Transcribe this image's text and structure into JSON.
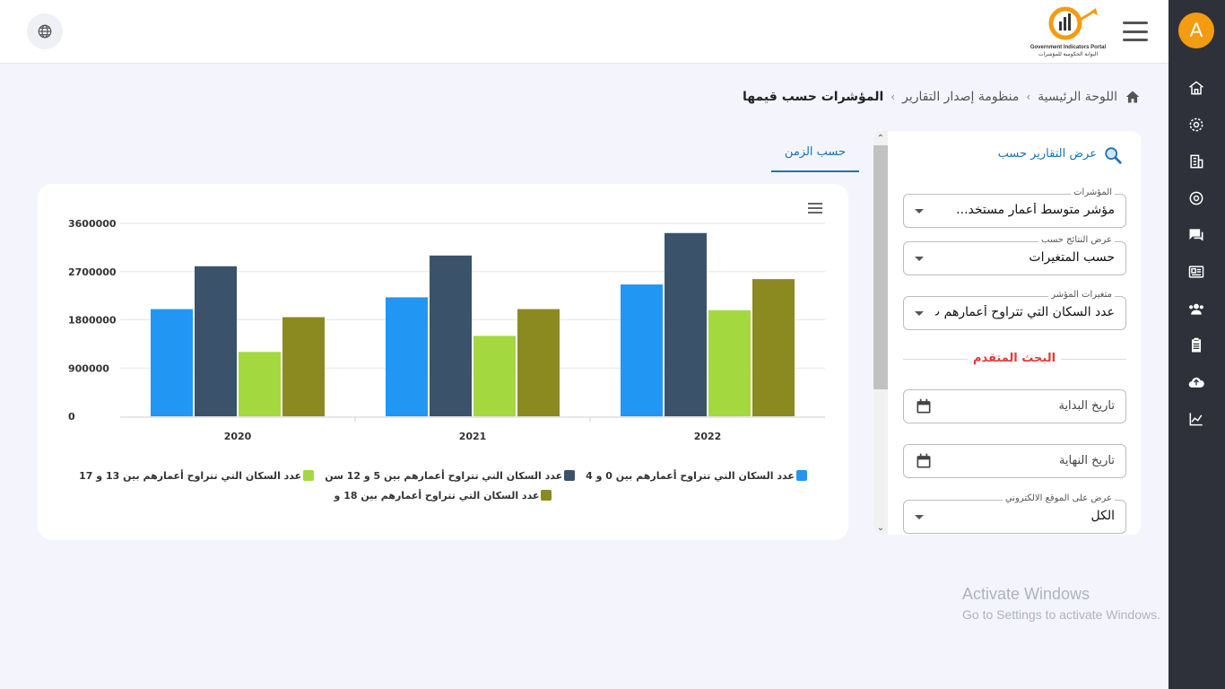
{
  "header": {
    "logo_en": "Government Indicators Portal",
    "logo_ar": "البوابة الحكومية للمؤشرات",
    "avatar_letter": "A"
  },
  "breadcrumb": {
    "home": "اللوحة الرئيسية",
    "section": "منظومة إصدار التقارير",
    "current": "المؤشرات حسب قيمها"
  },
  "sidebar": {
    "icons": [
      "home-icon",
      "settings-icon",
      "building-icon",
      "target-icon",
      "chat-icon",
      "news-icon",
      "users-icon",
      "clipboard-icon",
      "cloud-upload-icon",
      "chart-line-icon"
    ]
  },
  "filters": {
    "title": "عرض التقارير حسب",
    "indicators": {
      "label": "المؤشرات",
      "value": "مؤشر متوسط أعمار مستخد..."
    },
    "display_by": {
      "label": "عرض النتائج حسب",
      "value": "حسب المتغيرات"
    },
    "variables": {
      "label": "متغيرات المؤشر",
      "value": "عدد السكان التي تتراوح أعمارهم ب..."
    },
    "advanced_title": "البحث المتقدم",
    "start_date": {
      "placeholder": "تاريخ البداية"
    },
    "end_date": {
      "placeholder": "تاريخ النهاية"
    },
    "website": {
      "label": "عرض على الموقع الالكتروني",
      "value": "الكل"
    }
  },
  "tabs": {
    "by_time": "حسب الزمن"
  },
  "colors": {
    "accent": "#1a73b8",
    "sidebar": "#2e3139",
    "avatar": "#f39c12",
    "advanced": "#e53935"
  },
  "chart_data": {
    "type": "bar",
    "categories": [
      "2020",
      "2021",
      "2022"
    ],
    "ylim": [
      0,
      3600000
    ],
    "yticks": [
      "0",
      "900000",
      "1800000",
      "2700000",
      "3600000"
    ],
    "series": [
      {
        "name": "عدد السكان التي تتراوح أعمارهم بين 0 و 4",
        "color": "#2196f3",
        "values": [
          2000000,
          2220000,
          2460000
        ]
      },
      {
        "name": "عدد السكان التي تتراوح أعمارهم بين 5 و 12 سن",
        "color": "#3a536b",
        "values": [
          2800000,
          3000000,
          3420000
        ]
      },
      {
        "name": "عدد السكان التي تتراوح أعمارهم بين 13 و 17",
        "color": "#a4d83f",
        "values": [
          1200000,
          1500000,
          1980000
        ]
      },
      {
        "name": "عدد السكان التي تتراوح أعمارهم بين 18 و",
        "color": "#8b8a20",
        "values": [
          1850000,
          2000000,
          2560000
        ]
      }
    ]
  },
  "watermark": {
    "line1": "Activate Windows",
    "line2": "Go to Settings to activate Windows."
  }
}
